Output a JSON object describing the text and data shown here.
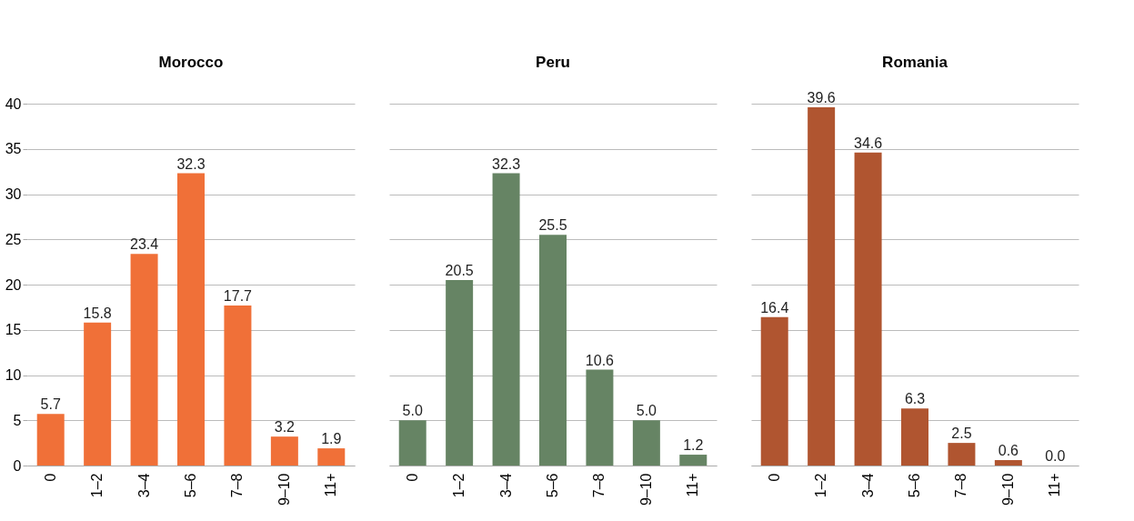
{
  "chart_data": [
    {
      "type": "bar",
      "title": "Morocco",
      "categories": [
        "0",
        "1–2",
        "3–4",
        "5–6",
        "7–8",
        "9–10",
        "11+"
      ],
      "values": [
        5.7,
        15.8,
        23.4,
        32.3,
        17.7,
        3.2,
        1.9
      ],
      "value_labels": [
        "5.7",
        "15.8",
        "23.4",
        "32.3",
        "17.7",
        "3.2",
        "1.9"
      ],
      "color": "#f07038",
      "ylim": [
        0,
        40
      ],
      "yticks": [
        0,
        5,
        10,
        15,
        20,
        25,
        30,
        35,
        40
      ],
      "grid": "y"
    },
    {
      "type": "bar",
      "title": "Peru",
      "categories": [
        "0",
        "1–2",
        "3–4",
        "5–6",
        "7–8",
        "9–10",
        "11+"
      ],
      "values": [
        5,
        20.5,
        32.3,
        25.5,
        10.6,
        5,
        1.2
      ],
      "value_labels": [
        "5.0",
        "20.5",
        "32.3",
        "25.5",
        "10.6",
        "5.0",
        "1.2"
      ],
      "color": "#668464",
      "ylim": [
        0,
        40
      ],
      "yticks": [
        0,
        5,
        10,
        15,
        20,
        25,
        30,
        35,
        40
      ],
      "grid": "y",
      "tick_labels": "x"
    },
    {
      "type": "bar",
      "title": "Romania",
      "categories": [
        "0",
        "1–2",
        "3–4",
        "5–6",
        "7–8",
        "9–10",
        "11+"
      ],
      "values": [
        16.4,
        39.6,
        34.6,
        6.3,
        2.5,
        0.6,
        0
      ],
      "value_labels": [
        "16.4",
        "39.6",
        "34.6",
        "6.3",
        "2.5",
        "0.6",
        "0.0"
      ],
      "color": "#b05530",
      "ylim": [
        0,
        40
      ],
      "yticks": [
        0,
        5,
        10,
        15,
        20,
        25,
        30,
        35,
        40
      ],
      "grid": "y",
      "tick_labels": "x"
    }
  ]
}
